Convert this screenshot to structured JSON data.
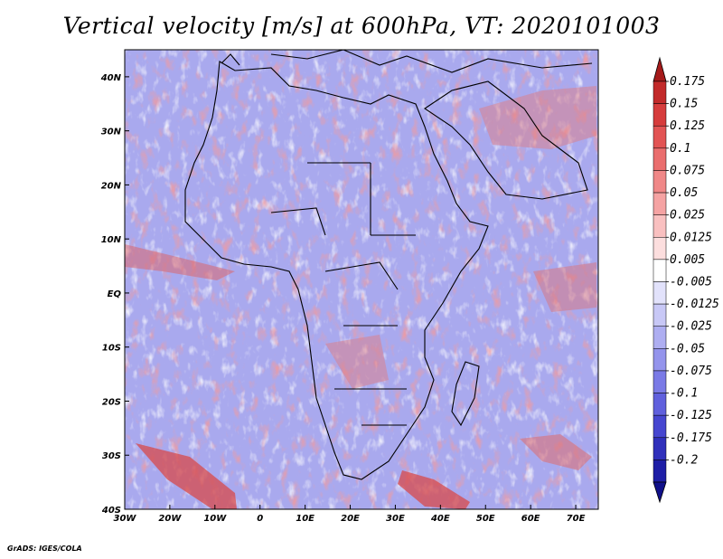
{
  "title": "Vertical velocity [m/s] at 600hPa, VT: 2020101003",
  "credit": "GrADS: IGES/COLA",
  "map": {
    "region": "Africa",
    "lon_range": [
      -30,
      75
    ],
    "lat_range": [
      -40,
      45
    ],
    "lon_ticks": [
      {
        "value": -30,
        "label": "30W"
      },
      {
        "value": -20,
        "label": "20W"
      },
      {
        "value": -10,
        "label": "10W"
      },
      {
        "value": 0,
        "label": "0"
      },
      {
        "value": 10,
        "label": "10E"
      },
      {
        "value": 20,
        "label": "20E"
      },
      {
        "value": 30,
        "label": "30E"
      },
      {
        "value": 40,
        "label": "40E"
      },
      {
        "value": 50,
        "label": "50E"
      },
      {
        "value": 60,
        "label": "60E"
      },
      {
        "value": 70,
        "label": "70E"
      }
    ],
    "lat_ticks": [
      {
        "value": 40,
        "label": "40N"
      },
      {
        "value": 30,
        "label": "30N"
      },
      {
        "value": 20,
        "label": "20N"
      },
      {
        "value": 10,
        "label": "10N"
      },
      {
        "value": 0,
        "label": "EQ"
      },
      {
        "value": -10,
        "label": "10S"
      },
      {
        "value": -20,
        "label": "20S"
      },
      {
        "value": -30,
        "label": "30S"
      },
      {
        "value": -40,
        "label": "40S"
      }
    ]
  },
  "colorbar": {
    "labels": [
      "0.175",
      "0.15",
      "0.125",
      "0.1",
      "0.075",
      "0.05",
      "0.025",
      "0.0125",
      "0.005",
      "-0.005",
      "-0.0125",
      "-0.025",
      "-0.05",
      "-0.075",
      "-0.1",
      "-0.125",
      "-0.175",
      "-0.2"
    ],
    "colors": [
      "#a51a1a",
      "#c22a2a",
      "#d63c3c",
      "#e25454",
      "#ea6e6e",
      "#f08888",
      "#f5a3a3",
      "#f9c0c0",
      "#fcdede",
      "#ffffff",
      "#e2e2fb",
      "#c8c8f6",
      "#aeaef1",
      "#9494ec",
      "#7a7ae6",
      "#6060dd",
      "#4646d0",
      "#3030bb",
      "#1e1ea6",
      "#10108a"
    ]
  }
}
